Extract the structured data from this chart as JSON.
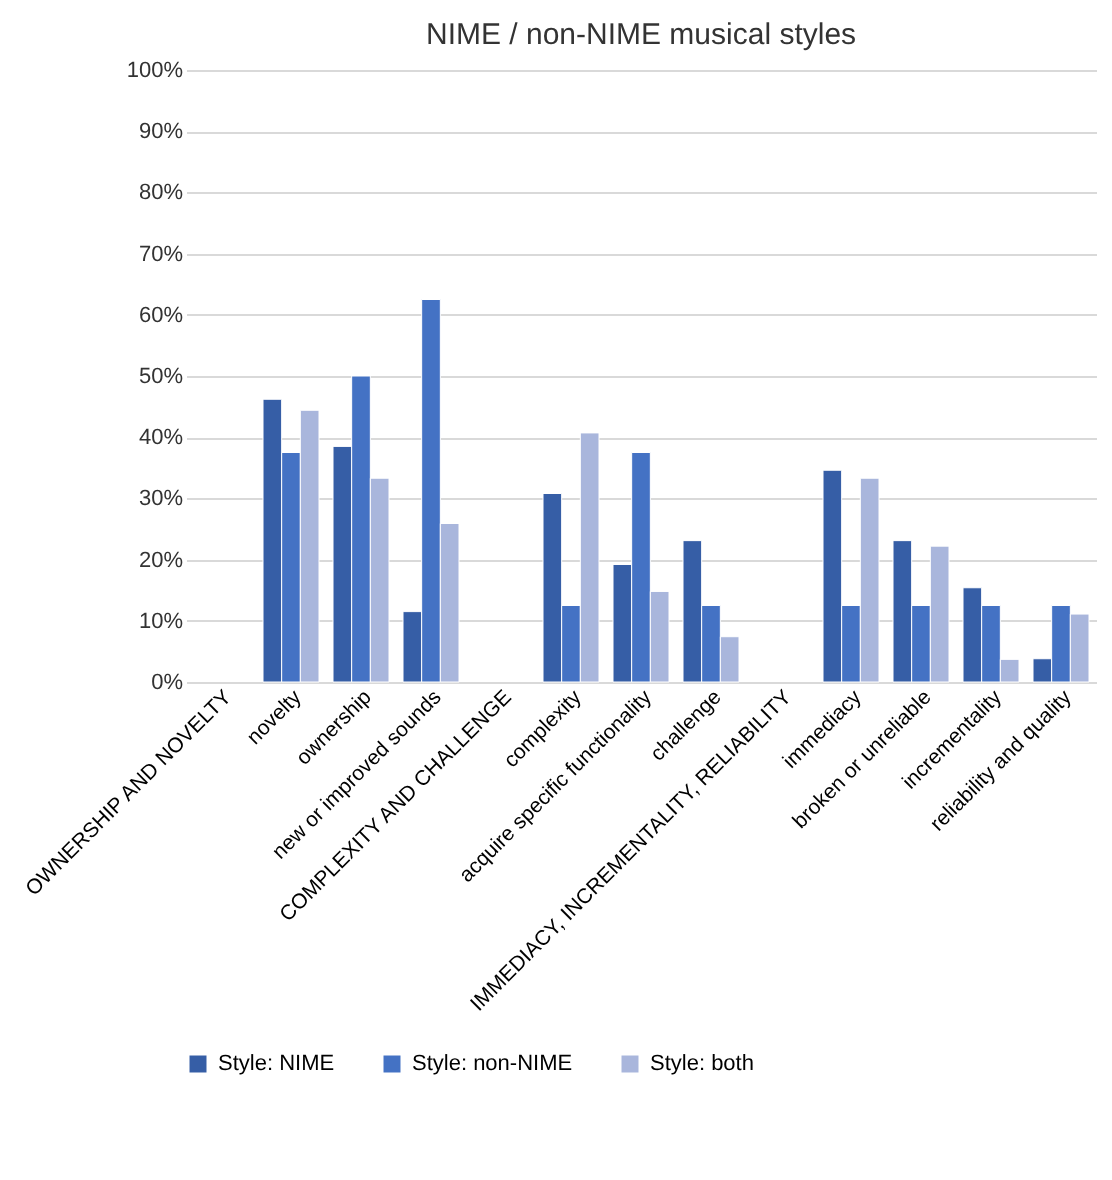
{
  "chart_data": {
    "type": "bar",
    "title": "NIME / non-NIME musical styles",
    "categories": [
      "OWNERSHIP AND NOVELTY",
      "novelty",
      "ownership",
      "new or improved sounds",
      "COMPLEXITY AND CHALLENGE",
      "complexity",
      "acquire specific functionality",
      "challenge",
      "IMMEDIACY, INCREMENTALITY, RELIABILITY",
      "immediacy",
      "broken or unreliable",
      "incrementality",
      "reliability and quality"
    ],
    "series": [
      {
        "name": "Style: NIME",
        "color": "#365ea6",
        "values": [
          null,
          46.2,
          38.5,
          11.5,
          null,
          30.8,
          19.2,
          23.1,
          null,
          34.6,
          23.1,
          15.4,
          3.8
        ]
      },
      {
        "name": "Style: non-NIME",
        "color": "#4472c4",
        "values": [
          null,
          37.5,
          50,
          62.5,
          null,
          12.5,
          37.5,
          12.5,
          null,
          12.5,
          12.5,
          12.5,
          12.5
        ]
      },
      {
        "name": "Style: both",
        "color": "#a9b6dc",
        "values": [
          null,
          44.4,
          33.3,
          25.9,
          null,
          40.7,
          14.8,
          7.4,
          null,
          33.3,
          22.2,
          3.7,
          11.1
        ]
      }
    ],
    "ylim": [
      0,
      100
    ],
    "yticks": [
      {
        "value": 0,
        "label": "0%"
      },
      {
        "value": 10,
        "label": "10%"
      },
      {
        "value": 20,
        "label": "20%"
      },
      {
        "value": 30,
        "label": "30%"
      },
      {
        "value": 40,
        "label": "40%"
      },
      {
        "value": 50,
        "label": "50%"
      },
      {
        "value": 60,
        "label": "60%"
      },
      {
        "value": 70,
        "label": "70%"
      },
      {
        "value": 80,
        "label": "80%"
      },
      {
        "value": 90,
        "label": "90%"
      },
      {
        "value": 100,
        "label": "100%"
      }
    ],
    "grid": "y",
    "legend": "bottom"
  }
}
